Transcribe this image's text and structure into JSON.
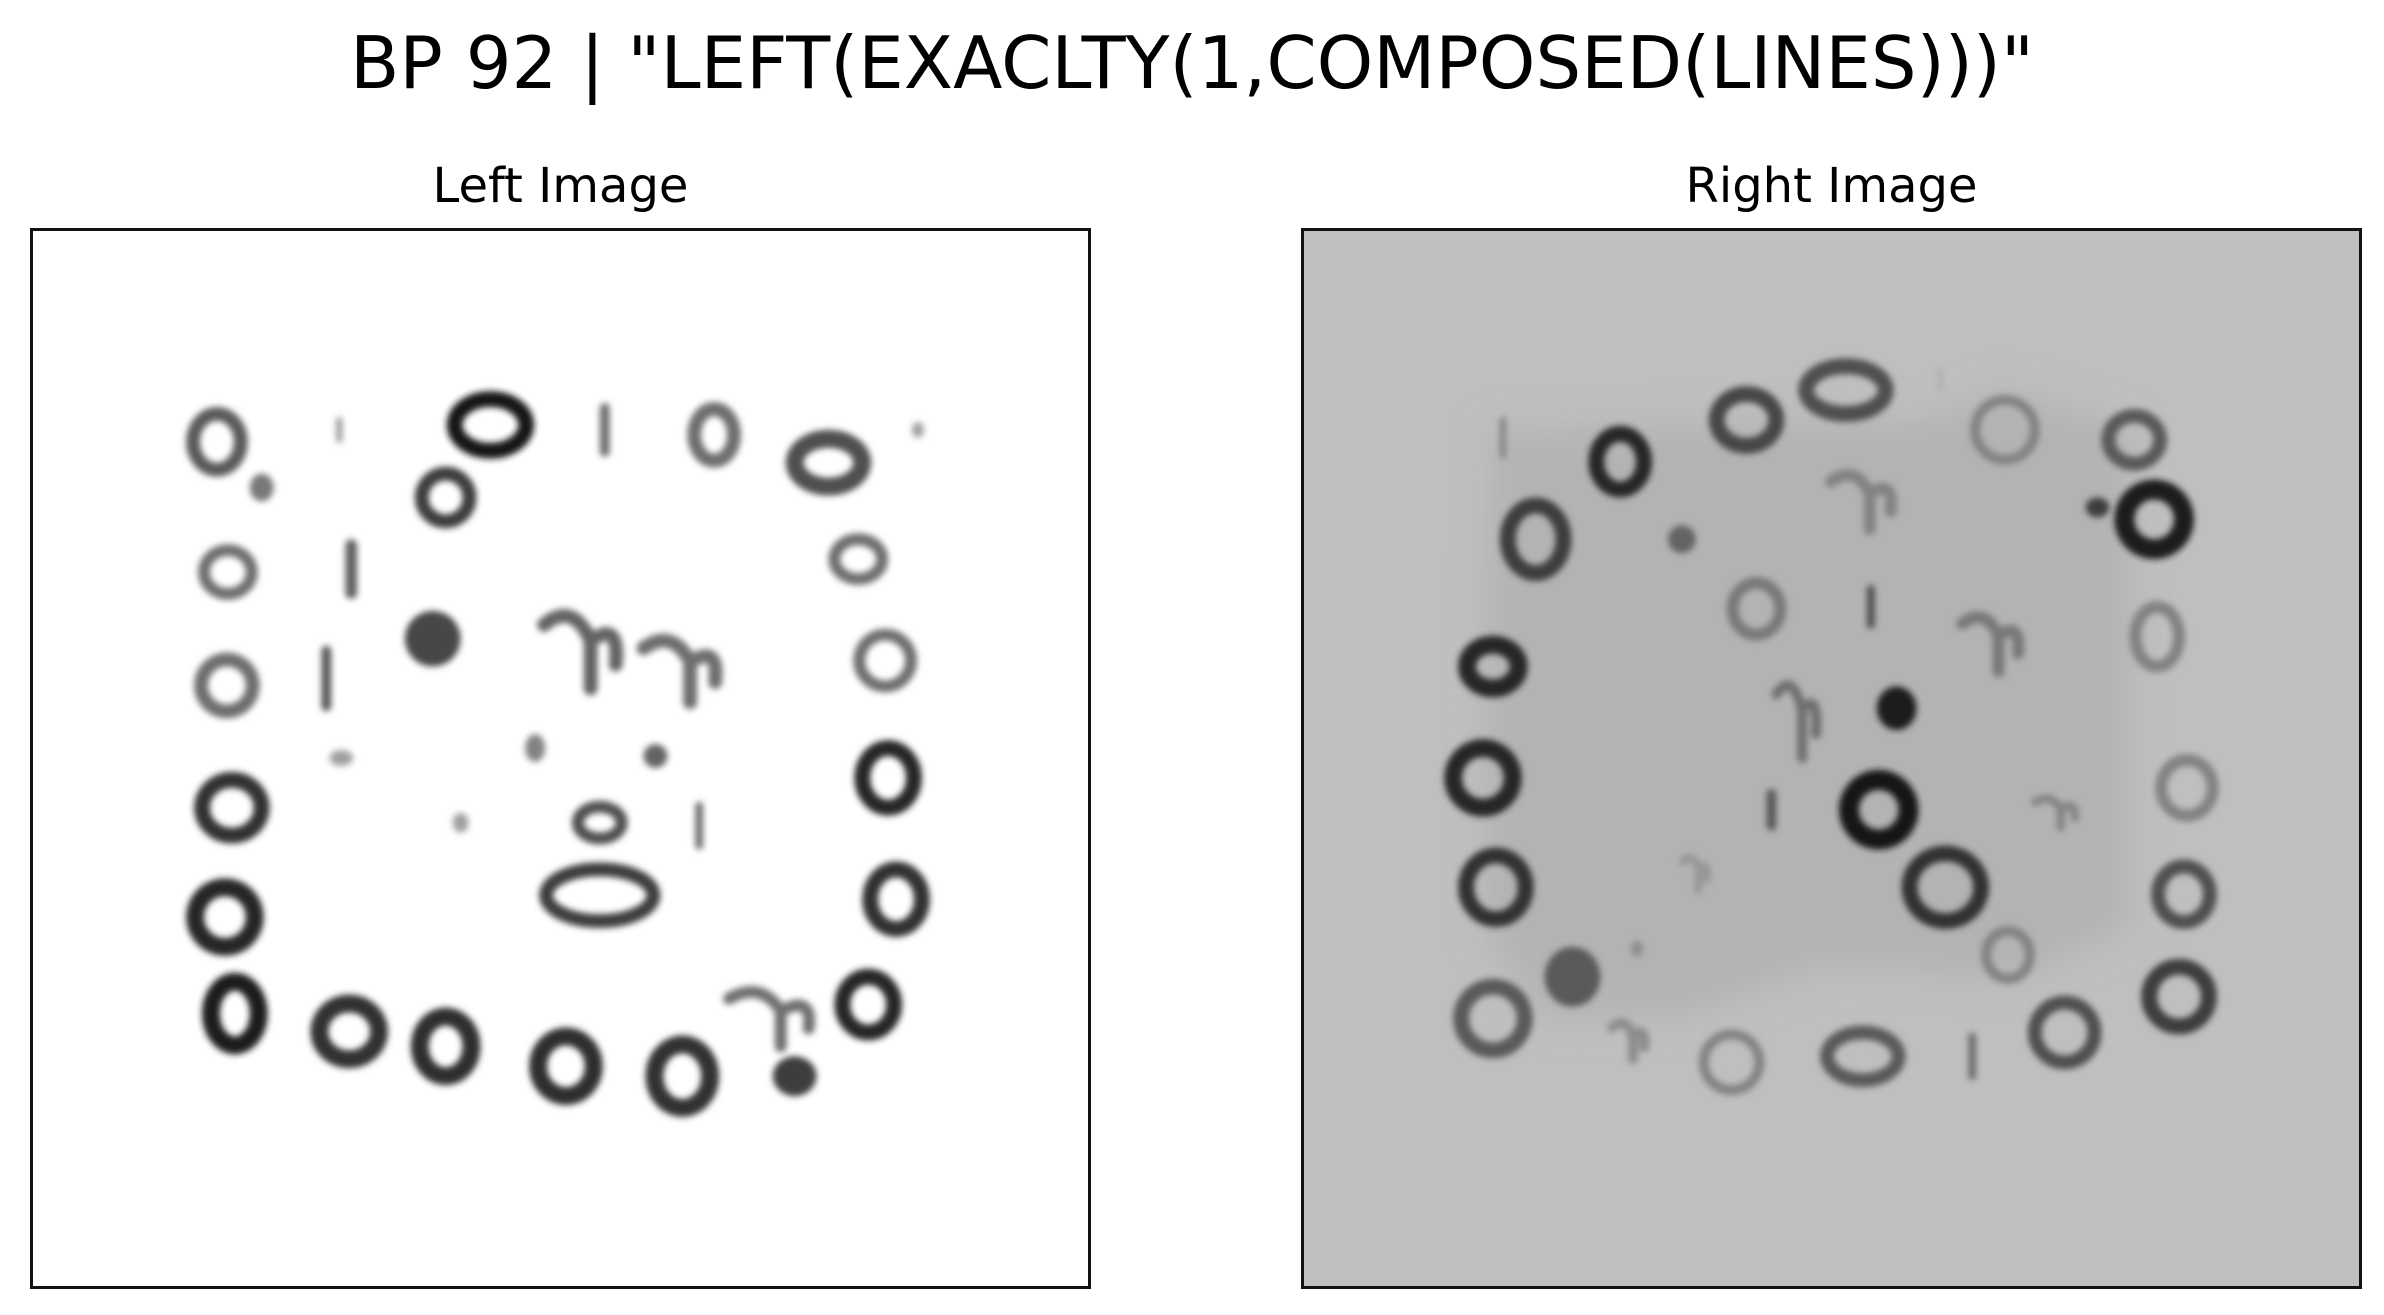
{
  "figure": {
    "title": "BP 92 | \"LEFT(EXACLTY(1,COMPOSED(LINES)))\"",
    "left_panel_title": "Left Image",
    "right_panel_title": "Right Image"
  },
  "colors": {
    "left_background": "#ffffff",
    "right_background": "#bfbfbf",
    "right_inner_region": "#b3b3b3",
    "border": "#111111"
  }
}
